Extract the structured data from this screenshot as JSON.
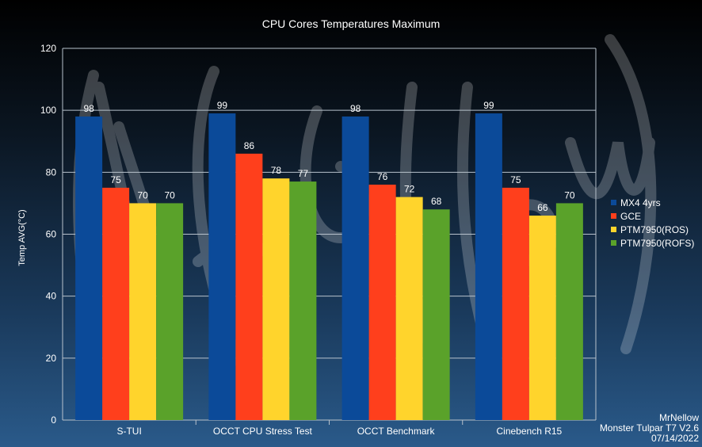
{
  "chart_data": {
    "type": "bar",
    "title": "CPU Cores Temperatures Maximum",
    "ylabel": "Temp AVG(°C)",
    "xlabel": "",
    "ylim": [
      0,
      120
    ],
    "yticks": [
      0,
      20,
      40,
      60,
      80,
      100,
      120
    ],
    "grid": true,
    "legend_position": "right",
    "categories": [
      "S-TUI",
      "OCCT CPU Stress Test",
      "OCCT Benchmark",
      "Cinebench R15"
    ],
    "series": [
      {
        "name": "MX4 4yrs",
        "color": "#0b4a99",
        "values": [
          98,
          99,
          98,
          99
        ]
      },
      {
        "name": "GCE",
        "color": "#ff3f1c",
        "values": [
          75,
          86,
          76,
          75
        ]
      },
      {
        "name": "PTM7950(ROS)",
        "color": "#ffd42c",
        "values": [
          70,
          78,
          72,
          66
        ]
      },
      {
        "name": "PTM7950(ROFS)",
        "color": "#5aa22a",
        "values": [
          70,
          77,
          68,
          70
        ]
      }
    ]
  },
  "watermark": "MrNellow",
  "footer": {
    "line1": "MrNellow",
    "line2": "Monster Tulpar T7 V2.6",
    "line3": "07/14/2022"
  }
}
